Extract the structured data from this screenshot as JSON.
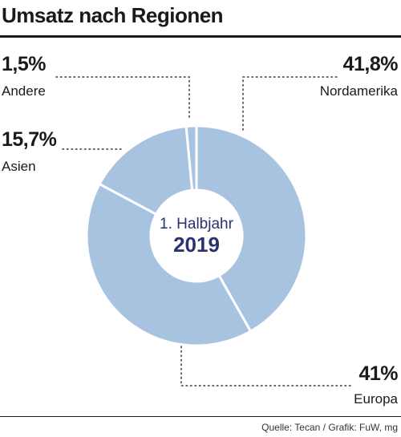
{
  "title": "Umsatz nach Regionen",
  "center": {
    "line1": "1. Halbjahr",
    "line2": "2019"
  },
  "source": "Quelle: Tecan / Grafik: FuW, mg",
  "colors": {
    "slice": "#a8c3df",
    "center_text": "#2a3270",
    "rule": "#1a1a1a"
  },
  "chart_data": {
    "type": "pie",
    "title": "Umsatz nach Regionen",
    "labels": [
      "Nordamerika",
      "Europa",
      "Asien",
      "Andere"
    ],
    "value_labels": [
      "41,8%",
      "41%",
      "15,7%",
      "1,5%"
    ],
    "values": [
      41.8,
      41.0,
      15.7,
      1.5
    ],
    "donut": true
  }
}
